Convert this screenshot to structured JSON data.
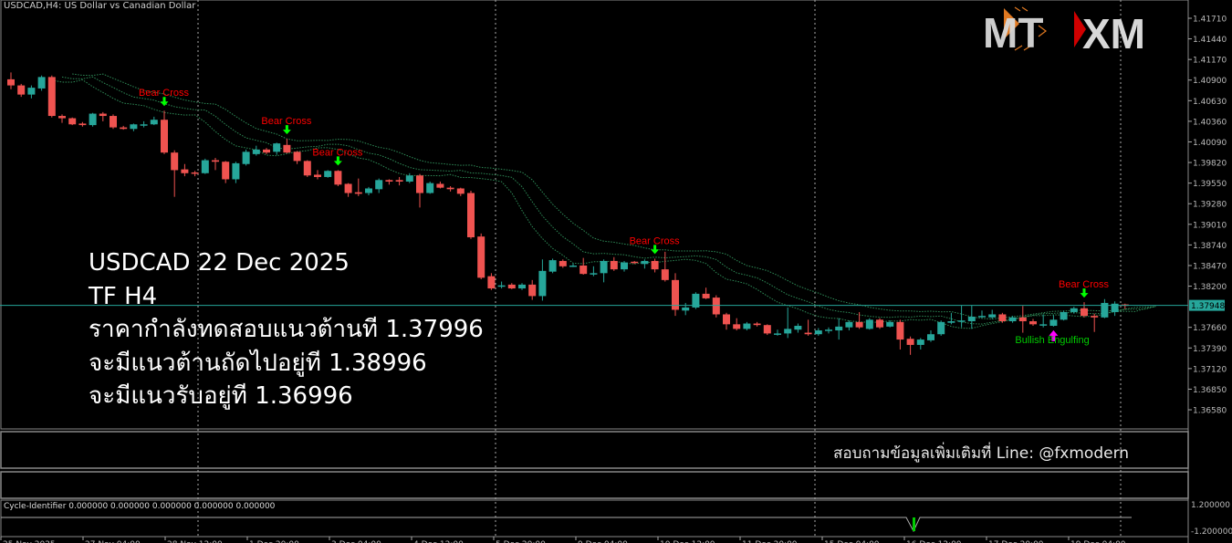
{
  "window": {
    "symbol_title": "USDCAD,H4: US Dollar vs Canadian Dollar"
  },
  "overlay": {
    "line1": "USDCAD 22 Dec 2025",
    "line2": "TF H4",
    "line3": "ราคากำลังทดสอบแนวต้านที 1.37996",
    "line4": "จะมีแนวต้านถัดไปอยู่ที 1.38996",
    "line5": "จะมีแนวรับอยู่ที 1.36996"
  },
  "contact": "สอบถามข้อมูลเพิ่มเติมที่ Line: @fxmodern",
  "logo": {
    "left": "MT",
    "right": "XM",
    "accent_orange": "#e07820",
    "accent_red": "#d00000"
  },
  "cycle_indicator": {
    "label": "Cycle-Identifier 0.000000 0.000000 0.000000 0.000000 0.000000",
    "scale_top": "1.200000",
    "scale_bottom": "-1.200000"
  },
  "colors": {
    "bull": "#26a69a",
    "bear": "#ef5350",
    "ma": "#2e8b57",
    "price_line": "#26a69a",
    "signal_arrow_down": "#00ff00",
    "signal_arrow_up": "#ff00ff",
    "bear_label": "#ff0000",
    "bull_label": "#00cc00"
  },
  "chart_data": {
    "type": "candlestick",
    "symbol": "USDCAD",
    "timeframe": "H4",
    "ylim": [
      1.3645,
      1.419
    ],
    "y_ticks": [
      "1.41710",
      "1.41440",
      "1.41170",
      "1.40900",
      "1.40630",
      "1.40360",
      "1.40090",
      "1.39820",
      "1.39550",
      "1.39280",
      "1.39010",
      "1.38740",
      "1.38470",
      "1.38200",
      "1.37660",
      "1.37390",
      "1.37120",
      "1.36850",
      "1.36580"
    ],
    "current_price": "1.37948",
    "x_ticks": [
      "25 Nov 2025",
      "27 Nov 04:00",
      "28 Nov 12:00",
      "1 Dec 20:00",
      "3 Dec 04:00",
      "4 Dec 12:00",
      "5 Dec 20:00",
      "9 Dec 04:00",
      "10 Dec 12:00",
      "11 Dec 20:00",
      "15 Dec 04:00",
      "16 Dec 12:00",
      "17 Dec 20:00",
      "19 Dec 04:00"
    ],
    "ohlc": [
      [
        1.4091,
        1.41,
        1.4078,
        1.4083
      ],
      [
        1.4083,
        1.4085,
        1.4068,
        1.4071
      ],
      [
        1.4071,
        1.4083,
        1.4066,
        1.408
      ],
      [
        1.4079,
        1.4096,
        1.4076,
        1.4094
      ],
      [
        1.4094,
        1.4096,
        1.4041,
        1.4043
      ],
      [
        1.4043,
        1.4045,
        1.4034,
        1.404
      ],
      [
        1.404,
        1.4041,
        1.4031,
        1.4032
      ],
      [
        1.4033,
        1.4035,
        1.4029,
        1.4031
      ],
      [
        1.4031,
        1.4047,
        1.4029,
        1.4046
      ],
      [
        1.4046,
        1.4048,
        1.4036,
        1.4043
      ],
      [
        1.4043,
        1.4045,
        1.4026,
        1.4028
      ],
      [
        1.4028,
        1.403,
        1.4025,
        1.4026
      ],
      [
        1.4026,
        1.4033,
        1.4023,
        1.4032
      ],
      [
        1.4032,
        1.4036,
        1.4028,
        1.4032
      ],
      [
        1.4032,
        1.4042,
        1.4031,
        1.4038
      ],
      [
        1.4038,
        1.405,
        1.3993,
        1.3995
      ],
      [
        1.3995,
        1.3998,
        1.3937,
        1.3972
      ],
      [
        1.3973,
        1.398,
        1.3964,
        1.3968
      ],
      [
        1.3969,
        1.3971,
        1.3964,
        1.3968
      ],
      [
        1.3968,
        1.3987,
        1.3967,
        1.3985
      ],
      [
        1.3985,
        1.3988,
        1.3972,
        1.3983
      ],
      [
        1.3983,
        1.3984,
        1.3955,
        1.396
      ],
      [
        1.396,
        1.3983,
        1.3955,
        1.3981
      ],
      [
        1.398,
        1.3999,
        1.3978,
        1.3996
      ],
      [
        1.3993,
        1.4004,
        1.3991,
        1.3999
      ],
      [
        1.3999,
        1.4001,
        1.3993,
        1.3995
      ],
      [
        1.3996,
        1.4008,
        1.3992,
        1.4007
      ],
      [
        1.4005,
        1.4013,
        1.3994,
        1.3995
      ],
      [
        1.3996,
        1.3997,
        1.398,
        1.3984
      ],
      [
        1.3984,
        1.3985,
        1.3963,
        1.3965
      ],
      [
        1.3966,
        1.3972,
        1.396,
        1.3963
      ],
      [
        1.3963,
        1.3972,
        1.3962,
        1.3971
      ],
      [
        1.3971,
        1.3972,
        1.3951,
        1.3953
      ],
      [
        1.3954,
        1.3955,
        1.3937,
        1.3942
      ],
      [
        1.3943,
        1.3961,
        1.3938,
        1.3941
      ],
      [
        1.3942,
        1.395,
        1.3939,
        1.3948
      ],
      [
        1.3947,
        1.3961,
        1.3942,
        1.3959
      ],
      [
        1.3959,
        1.396,
        1.3953,
        1.3957
      ],
      [
        1.3959,
        1.3963,
        1.3952,
        1.3957
      ],
      [
        1.3957,
        1.3968,
        1.3955,
        1.3965
      ],
      [
        1.3965,
        1.3967,
        1.3923,
        1.3942
      ],
      [
        1.3942,
        1.3957,
        1.3941,
        1.3955
      ],
      [
        1.3954,
        1.3957,
        1.3948,
        1.3949
      ],
      [
        1.3949,
        1.3951,
        1.3944,
        1.3947
      ],
      [
        1.3948,
        1.3949,
        1.3938,
        1.3941
      ],
      [
        1.3942,
        1.3945,
        1.3882,
        1.3884
      ],
      [
        1.3885,
        1.3889,
        1.3829,
        1.3831
      ],
      [
        1.3833,
        1.3837,
        1.3815,
        1.3817
      ],
      [
        1.3821,
        1.3826,
        1.3817,
        1.3821
      ],
      [
        1.3822,
        1.3824,
        1.3816,
        1.3817
      ],
      [
        1.3817,
        1.3824,
        1.3815,
        1.3822
      ],
      [
        1.3822,
        1.3828,
        1.3802,
        1.3807
      ],
      [
        1.3807,
        1.3855,
        1.3801,
        1.384
      ],
      [
        1.3839,
        1.3856,
        1.3837,
        1.3854
      ],
      [
        1.3853,
        1.3855,
        1.3844,
        1.3846
      ],
      [
        1.3847,
        1.385,
        1.3845,
        1.3847
      ],
      [
        1.3847,
        1.3857,
        1.3835,
        1.3836
      ],
      [
        1.3837,
        1.3846,
        1.3833,
        1.3837
      ],
      [
        1.3837,
        1.3855,
        1.3825,
        1.3853
      ],
      [
        1.3853,
        1.3858,
        1.384,
        1.3842
      ],
      [
        1.3842,
        1.3853,
        1.3839,
        1.3851
      ],
      [
        1.3852,
        1.3853,
        1.3849,
        1.3851
      ],
      [
        1.3849,
        1.3855,
        1.3843,
        1.3853
      ],
      [
        1.3853,
        1.3856,
        1.3838,
        1.3842
      ],
      [
        1.3842,
        1.3865,
        1.3826,
        1.3828
      ],
      [
        1.3828,
        1.3837,
        1.3781,
        1.3789
      ],
      [
        1.3788,
        1.3798,
        1.3782,
        1.3792
      ],
      [
        1.3792,
        1.3812,
        1.379,
        1.381
      ],
      [
        1.381,
        1.3818,
        1.3803,
        1.3804
      ],
      [
        1.3805,
        1.3808,
        1.3779,
        1.3783
      ],
      [
        1.3783,
        1.3785,
        1.3763,
        1.377
      ],
      [
        1.377,
        1.3778,
        1.3762,
        1.3764
      ],
      [
        1.3764,
        1.3773,
        1.3762,
        1.3771
      ],
      [
        1.3771,
        1.3773,
        1.3767,
        1.3769
      ],
      [
        1.3769,
        1.377,
        1.3756,
        1.3758
      ],
      [
        1.3758,
        1.3763,
        1.3755,
        1.3758
      ],
      [
        1.3758,
        1.3792,
        1.3752,
        1.3764
      ],
      [
        1.3763,
        1.3771,
        1.3759,
        1.3768
      ],
      [
        1.3759,
        1.3776,
        1.3755,
        1.3757
      ],
      [
        1.3757,
        1.3765,
        1.3755,
        1.3762
      ],
      [
        1.3763,
        1.3766,
        1.3758,
        1.3763
      ],
      [
        1.3762,
        1.3778,
        1.375,
        1.3767
      ],
      [
        1.3766,
        1.3775,
        1.3762,
        1.3773
      ],
      [
        1.3773,
        1.3786,
        1.3764,
        1.3766
      ],
      [
        1.3764,
        1.3778,
        1.3763,
        1.3776
      ],
      [
        1.3776,
        1.3778,
        1.3764,
        1.3766
      ],
      [
        1.3767,
        1.3775,
        1.3766,
        1.3773
      ],
      [
        1.3773,
        1.3776,
        1.3737,
        1.375
      ],
      [
        1.3751,
        1.3754,
        1.373,
        1.3743
      ],
      [
        1.3743,
        1.3752,
        1.3737,
        1.375
      ],
      [
        1.3749,
        1.3762,
        1.3747,
        1.3757
      ],
      [
        1.3757,
        1.3775,
        1.3755,
        1.3773
      ],
      [
        1.3772,
        1.3785,
        1.377,
        1.3774
      ],
      [
        1.3775,
        1.3795,
        1.3766,
        1.3775
      ],
      [
        1.3774,
        1.3795,
        1.3764,
        1.378
      ],
      [
        1.3781,
        1.3788,
        1.3778,
        1.3781
      ],
      [
        1.3779,
        1.3789,
        1.3777,
        1.3783
      ],
      [
        1.3783,
        1.3785,
        1.3772,
        1.3774
      ],
      [
        1.3774,
        1.3781,
        1.3772,
        1.3779
      ],
      [
        1.3779,
        1.3794,
        1.3759,
        1.3774
      ],
      [
        1.3774,
        1.3777,
        1.3768,
        1.377
      ],
      [
        1.377,
        1.3783,
        1.3766,
        1.377
      ],
      [
        1.3768,
        1.3782,
        1.3767,
        1.3776
      ],
      [
        1.3776,
        1.3788,
        1.3775,
        1.3786
      ],
      [
        1.3786,
        1.3793,
        1.3784,
        1.3791
      ],
      [
        1.3791,
        1.3799,
        1.3779,
        1.3781
      ],
      [
        1.3781,
        1.3784,
        1.376,
        1.3779
      ],
      [
        1.3779,
        1.3803,
        1.3778,
        1.3798
      ],
      [
        1.3786,
        1.38,
        1.3781,
        1.3797
      ],
      [
        1.3796,
        1.3797,
        1.379,
        1.3795
      ]
    ],
    "signals": [
      {
        "index": 15,
        "label": "Bear Cross",
        "direction": "down"
      },
      {
        "index": 27,
        "label": "Bear Cross",
        "direction": "down"
      },
      {
        "index": 32,
        "label": "Bear Cross",
        "direction": "down"
      },
      {
        "index": 63,
        "label": "Bear Cross",
        "direction": "down"
      },
      {
        "index": 105,
        "label": "Bear Cross",
        "direction": "down"
      },
      {
        "index": 102,
        "label": "Bullish Engulfing",
        "direction": "up"
      }
    ]
  }
}
